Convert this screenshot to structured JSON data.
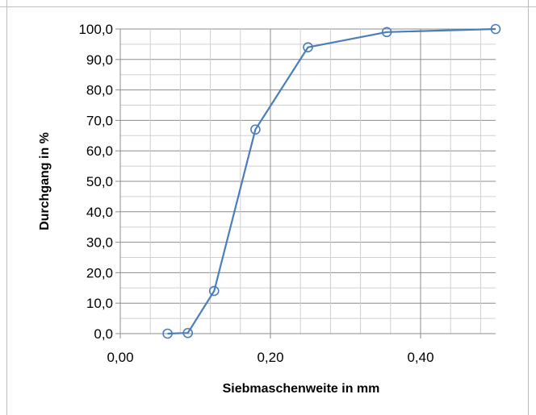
{
  "chart_data": {
    "type": "line",
    "title": "",
    "xlabel": "Siebmaschenweite in mm",
    "ylabel": "Durchgang in %",
    "xlim": [
      0,
      0.5
    ],
    "ylim": [
      0,
      100
    ],
    "x_ticks": [
      0.0,
      0.2,
      0.4
    ],
    "x_tick_labels": [
      "0,00",
      "0,20",
      "0,40"
    ],
    "y_ticks": [
      0,
      10,
      20,
      30,
      40,
      50,
      60,
      70,
      80,
      90,
      100
    ],
    "y_tick_labels": [
      "0,0",
      "10,0",
      "20,0",
      "30,0",
      "40,0",
      "50,0",
      "60,0",
      "70,0",
      "80,0",
      "90,0",
      "100,0"
    ],
    "grid": true,
    "legend": "none",
    "series": [
      {
        "color": "#4a7ebb",
        "marker": "open-circle",
        "x": [
          0.063,
          0.09,
          0.125,
          0.18,
          0.25,
          0.355,
          0.5
        ],
        "y": [
          0.0,
          0.2,
          14.0,
          67.0,
          94.0,
          99.0,
          100.0
        ]
      }
    ]
  }
}
